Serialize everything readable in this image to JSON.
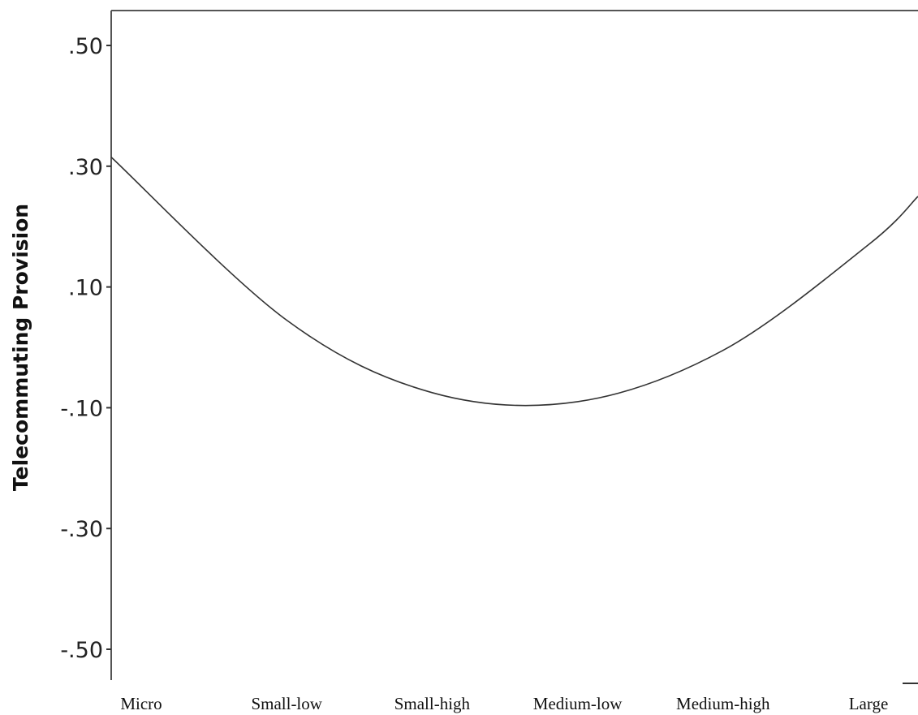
{
  "chart_data": {
    "type": "line",
    "title": "",
    "xlabel": "",
    "ylabel": "Telecommuting Provision",
    "categories": [
      "Micro",
      "Small-low",
      "Small-high",
      "Medium-low",
      "Medium-high",
      "Large"
    ],
    "yticks": [
      ".50",
      ".30",
      ".10",
      "-.10",
      "-.30",
      "-.50"
    ],
    "ytick_values": [
      0.5,
      0.3,
      0.1,
      -0.1,
      -0.3,
      -0.5
    ],
    "ylim": [
      -0.54,
      0.56
    ],
    "xlim": [
      0,
      5.55
    ],
    "grid": false,
    "legend": "none",
    "series": [
      {
        "values": [
          0.315,
          0.045,
          -0.075,
          -0.09,
          -0.005,
          0.17,
          0.25
        ],
        "x": [
          0,
          1,
          2,
          3,
          4,
          5,
          5.55
        ]
      }
    ],
    "colors": {
      "line": "#333333",
      "axis": "#555555",
      "background": "#ffffff"
    }
  }
}
